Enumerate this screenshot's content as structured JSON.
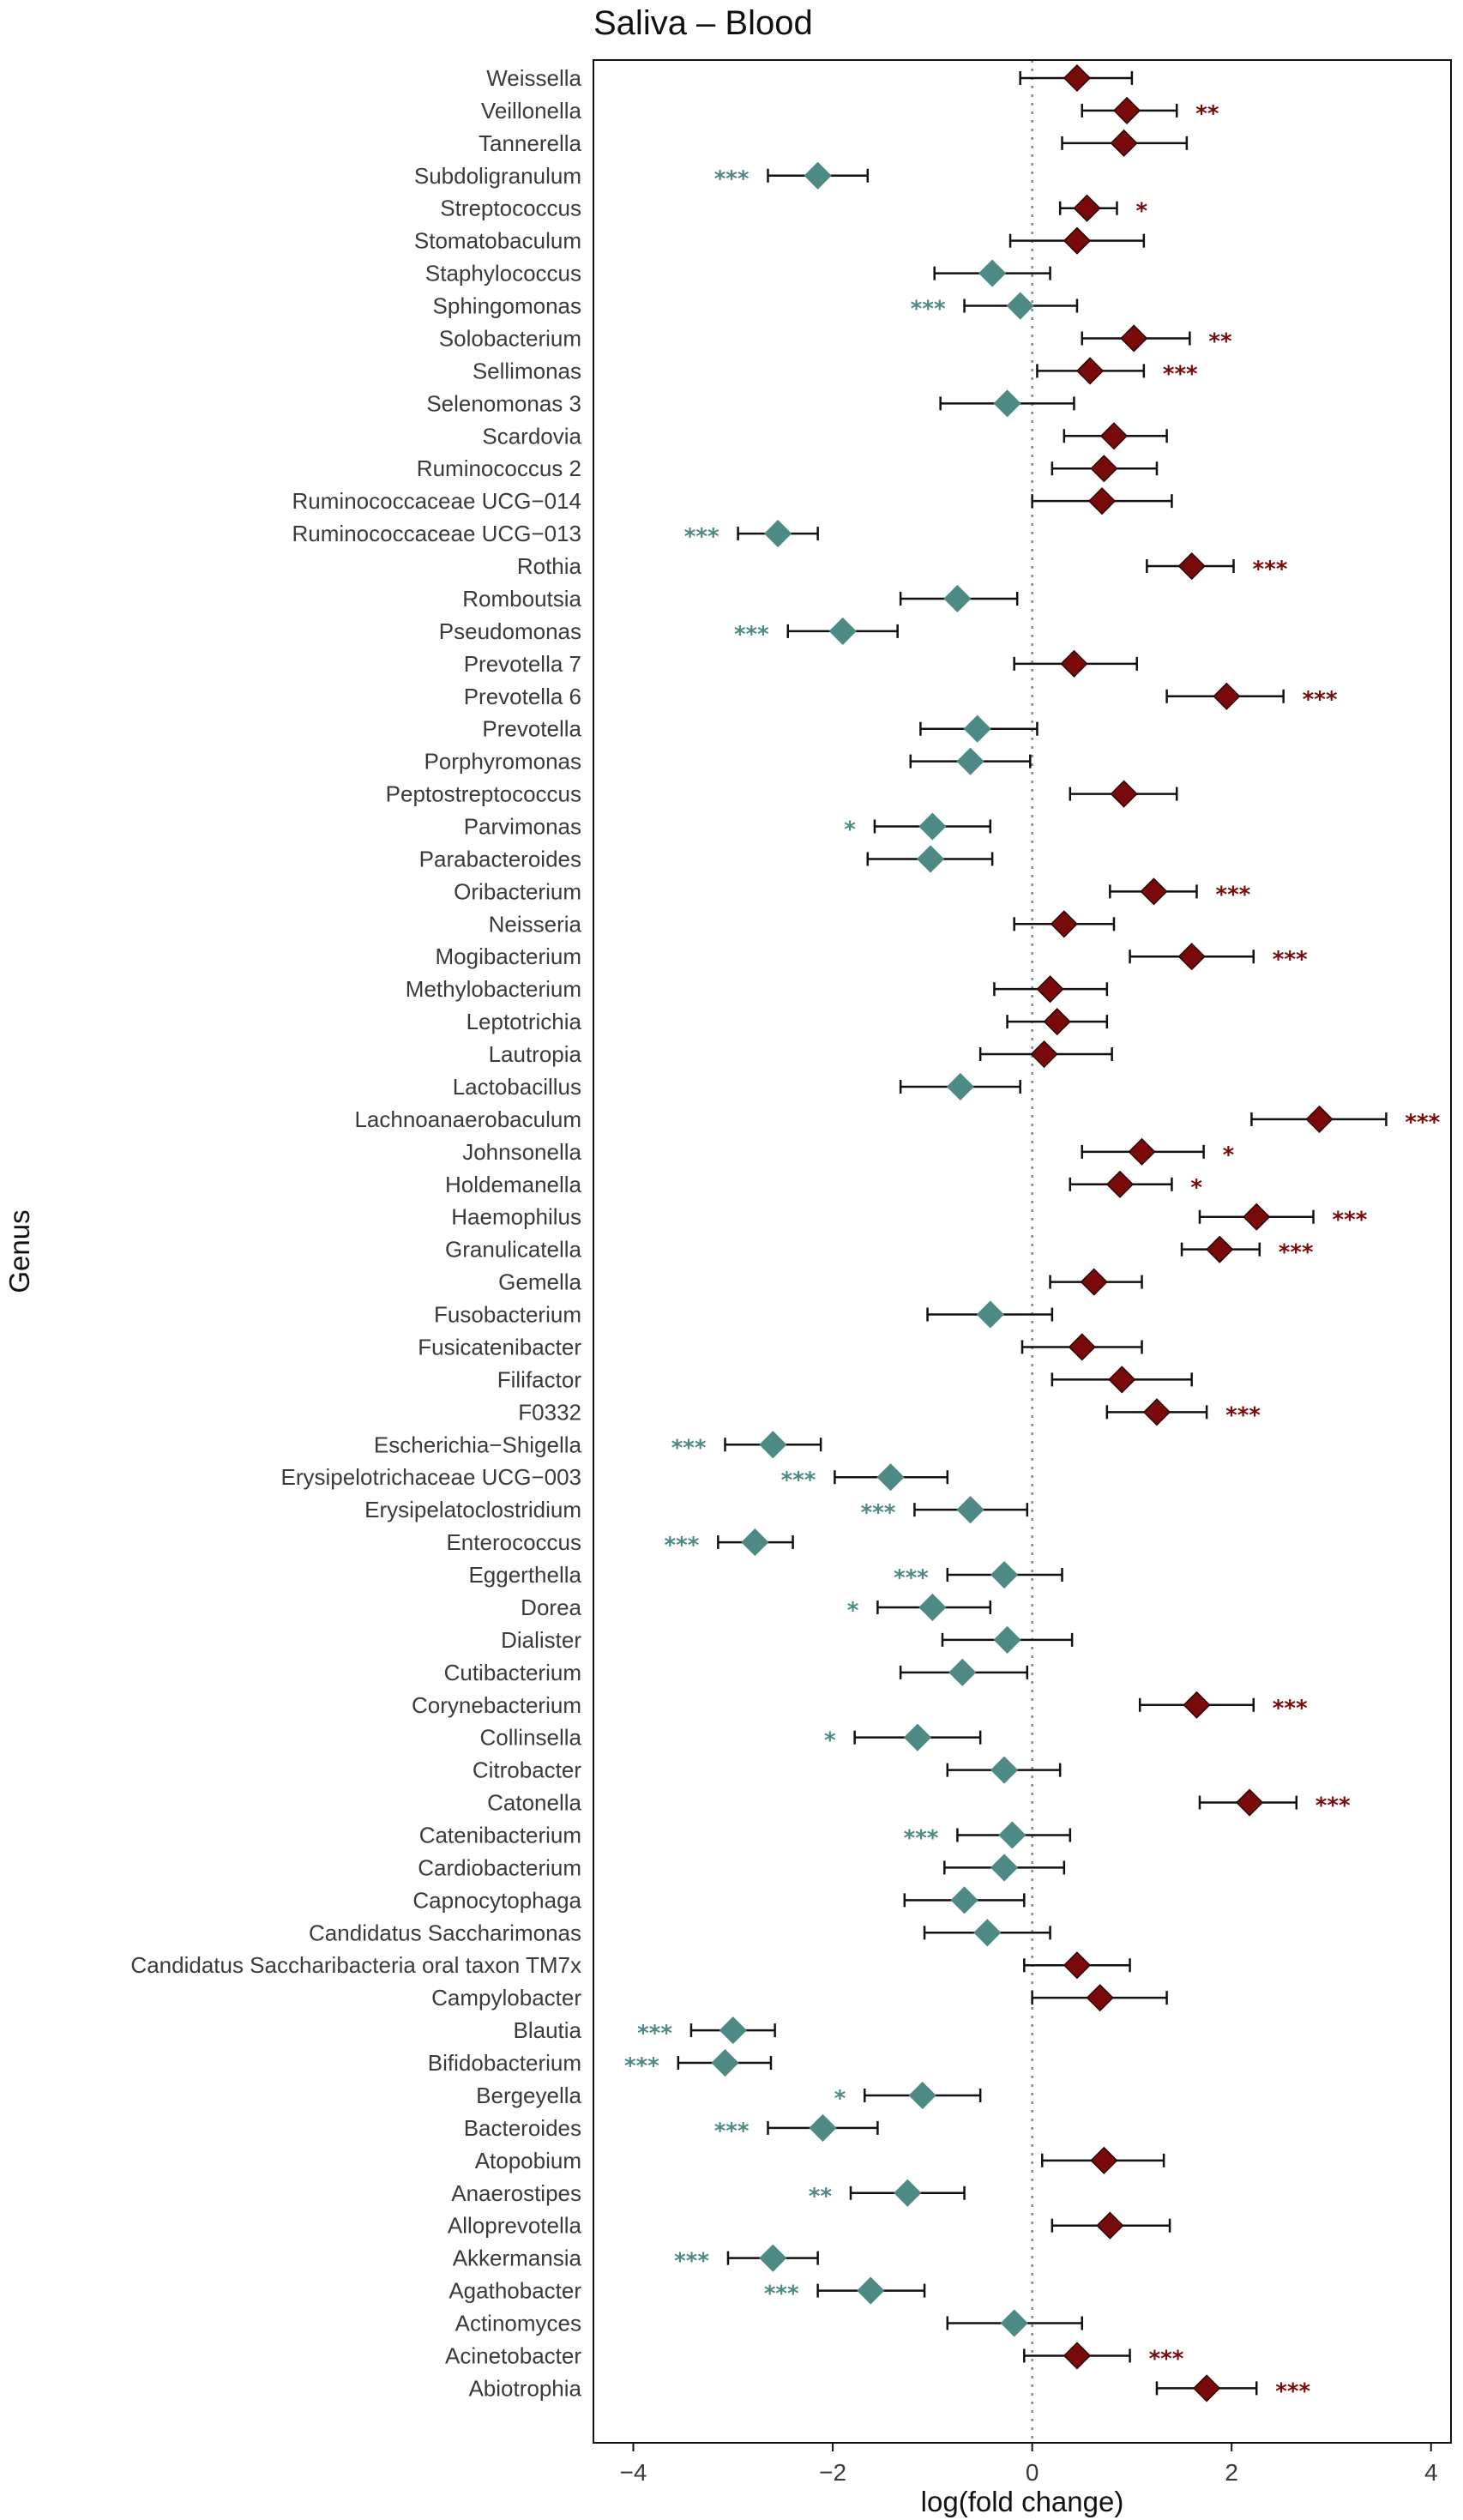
{
  "chart_data": {
    "type": "forest",
    "title": "Saliva – Blood",
    "xlabel": "log(fold change)",
    "ylabel": "Genus",
    "xlim": [
      -4.4,
      4.2
    ],
    "xticks": [
      -4,
      -2,
      0,
      2,
      4
    ],
    "xtick_labels": [
      "−4",
      "−2",
      "0",
      "2",
      "4"
    ],
    "reference_line": 0,
    "colors": {
      "positive": "#7a0a0a",
      "negative": "#4d8a86",
      "errorbar": "#111111",
      "refline": "#888888",
      "frame": "#111111"
    },
    "rows": [
      {
        "genus": "Weissella",
        "value": 0.45,
        "lo": -0.12,
        "hi": 1.0,
        "sig": ""
      },
      {
        "genus": "Veillonella",
        "value": 0.95,
        "lo": 0.5,
        "hi": 1.45,
        "sig": "**"
      },
      {
        "genus": "Tannerella",
        "value": 0.92,
        "lo": 0.3,
        "hi": 1.55,
        "sig": ""
      },
      {
        "genus": "Subdoligranulum",
        "value": -2.15,
        "lo": -2.65,
        "hi": -1.65,
        "sig": "***"
      },
      {
        "genus": "Streptococcus",
        "value": 0.55,
        "lo": 0.28,
        "hi": 0.85,
        "sig": "*"
      },
      {
        "genus": "Stomatobaculum",
        "value": 0.45,
        "lo": -0.22,
        "hi": 1.12,
        "sig": ""
      },
      {
        "genus": "Staphylococcus",
        "value": -0.4,
        "lo": -0.98,
        "hi": 0.18,
        "sig": ""
      },
      {
        "genus": "Sphingomonas",
        "value": -0.12,
        "lo": -0.68,
        "hi": 0.45,
        "sig": "***"
      },
      {
        "genus": "Solobacterium",
        "value": 1.02,
        "lo": 0.5,
        "hi": 1.58,
        "sig": "**"
      },
      {
        "genus": "Sellimonas",
        "value": 0.58,
        "lo": 0.05,
        "hi": 1.12,
        "sig": "***"
      },
      {
        "genus": "Selenomonas 3",
        "value": -0.25,
        "lo": -0.92,
        "hi": 0.42,
        "sig": ""
      },
      {
        "genus": "Scardovia",
        "value": 0.82,
        "lo": 0.32,
        "hi": 1.35,
        "sig": ""
      },
      {
        "genus": "Ruminococcus 2",
        "value": 0.72,
        "lo": 0.2,
        "hi": 1.25,
        "sig": ""
      },
      {
        "genus": "Ruminococcaceae UCG−014",
        "value": 0.7,
        "lo": 0.0,
        "hi": 1.4,
        "sig": ""
      },
      {
        "genus": "Ruminococcaceae UCG−013",
        "value": -2.55,
        "lo": -2.95,
        "hi": -2.15,
        "sig": "***"
      },
      {
        "genus": "Rothia",
        "value": 1.6,
        "lo": 1.15,
        "hi": 2.02,
        "sig": "***"
      },
      {
        "genus": "Romboutsia",
        "value": -0.75,
        "lo": -1.32,
        "hi": -0.15,
        "sig": ""
      },
      {
        "genus": "Pseudomonas",
        "value": -1.9,
        "lo": -2.45,
        "hi": -1.35,
        "sig": "***"
      },
      {
        "genus": "Prevotella 7",
        "value": 0.42,
        "lo": -0.18,
        "hi": 1.05,
        "sig": ""
      },
      {
        "genus": "Prevotella 6",
        "value": 1.95,
        "lo": 1.35,
        "hi": 2.52,
        "sig": "***"
      },
      {
        "genus": "Prevotella",
        "value": -0.55,
        "lo": -1.12,
        "hi": 0.05,
        "sig": ""
      },
      {
        "genus": "Porphyromonas",
        "value": -0.62,
        "lo": -1.22,
        "hi": -0.02,
        "sig": ""
      },
      {
        "genus": "Peptostreptococcus",
        "value": 0.92,
        "lo": 0.38,
        "hi": 1.45,
        "sig": ""
      },
      {
        "genus": "Parvimonas",
        "value": -1.0,
        "lo": -1.58,
        "hi": -0.42,
        "sig": "*"
      },
      {
        "genus": "Parabacteroides",
        "value": -1.02,
        "lo": -1.65,
        "hi": -0.4,
        "sig": ""
      },
      {
        "genus": "Oribacterium",
        "value": 1.22,
        "lo": 0.78,
        "hi": 1.65,
        "sig": "***"
      },
      {
        "genus": "Neisseria",
        "value": 0.32,
        "lo": -0.18,
        "hi": 0.82,
        "sig": ""
      },
      {
        "genus": "Mogibacterium",
        "value": 1.6,
        "lo": 0.98,
        "hi": 2.22,
        "sig": "***"
      },
      {
        "genus": "Methylobacterium",
        "value": 0.18,
        "lo": -0.38,
        "hi": 0.75,
        "sig": ""
      },
      {
        "genus": "Leptotrichia",
        "value": 0.25,
        "lo": -0.25,
        "hi": 0.75,
        "sig": ""
      },
      {
        "genus": "Lautropia",
        "value": 0.12,
        "lo": -0.52,
        "hi": 0.8,
        "sig": ""
      },
      {
        "genus": "Lactobacillus",
        "value": -0.72,
        "lo": -1.32,
        "hi": -0.12,
        "sig": ""
      },
      {
        "genus": "Lachnoanaerobaculum",
        "value": 2.88,
        "lo": 2.2,
        "hi": 3.55,
        "sig": "***"
      },
      {
        "genus": "Johnsonella",
        "value": 1.1,
        "lo": 0.5,
        "hi": 1.72,
        "sig": "*"
      },
      {
        "genus": "Holdemanella",
        "value": 0.88,
        "lo": 0.38,
        "hi": 1.4,
        "sig": "*"
      },
      {
        "genus": "Haemophilus",
        "value": 2.25,
        "lo": 1.68,
        "hi": 2.82,
        "sig": "***"
      },
      {
        "genus": "Granulicatella",
        "value": 1.88,
        "lo": 1.5,
        "hi": 2.28,
        "sig": "***"
      },
      {
        "genus": "Gemella",
        "value": 0.62,
        "lo": 0.18,
        "hi": 1.1,
        "sig": ""
      },
      {
        "genus": "Fusobacterium",
        "value": -0.42,
        "lo": -1.05,
        "hi": 0.2,
        "sig": ""
      },
      {
        "genus": "Fusicatenibacter",
        "value": 0.5,
        "lo": -0.1,
        "hi": 1.1,
        "sig": ""
      },
      {
        "genus": "Filifactor",
        "value": 0.9,
        "lo": 0.2,
        "hi": 1.6,
        "sig": ""
      },
      {
        "genus": "F0332",
        "value": 1.25,
        "lo": 0.75,
        "hi": 1.75,
        "sig": "***"
      },
      {
        "genus": "Escherichia−Shigella",
        "value": -2.6,
        "lo": -3.08,
        "hi": -2.12,
        "sig": "***"
      },
      {
        "genus": "Erysipelotrichaceae UCG−003",
        "value": -1.42,
        "lo": -1.98,
        "hi": -0.85,
        "sig": "***"
      },
      {
        "genus": "Erysipelatoclostridium",
        "value": -0.62,
        "lo": -1.18,
        "hi": -0.05,
        "sig": "***"
      },
      {
        "genus": "Enterococcus",
        "value": -2.78,
        "lo": -3.15,
        "hi": -2.4,
        "sig": "***"
      },
      {
        "genus": "Eggerthella",
        "value": -0.28,
        "lo": -0.85,
        "hi": 0.3,
        "sig": "***"
      },
      {
        "genus": "Dorea",
        "value": -1.0,
        "lo": -1.55,
        "hi": -0.42,
        "sig": "*"
      },
      {
        "genus": "Dialister",
        "value": -0.25,
        "lo": -0.9,
        "hi": 0.4,
        "sig": ""
      },
      {
        "genus": "Cutibacterium",
        "value": -0.7,
        "lo": -1.32,
        "hi": -0.05,
        "sig": ""
      },
      {
        "genus": "Corynebacterium",
        "value": 1.65,
        "lo": 1.08,
        "hi": 2.22,
        "sig": "***"
      },
      {
        "genus": "Collinsella",
        "value": -1.15,
        "lo": -1.78,
        "hi": -0.52,
        "sig": "*"
      },
      {
        "genus": "Citrobacter",
        "value": -0.28,
        "lo": -0.85,
        "hi": 0.28,
        "sig": ""
      },
      {
        "genus": "Catonella",
        "value": 2.18,
        "lo": 1.68,
        "hi": 2.65,
        "sig": "***"
      },
      {
        "genus": "Catenibacterium",
        "value": -0.2,
        "lo": -0.75,
        "hi": 0.38,
        "sig": "***"
      },
      {
        "genus": "Cardiobacterium",
        "value": -0.28,
        "lo": -0.88,
        "hi": 0.32,
        "sig": ""
      },
      {
        "genus": "Capnocytophaga",
        "value": -0.68,
        "lo": -1.28,
        "hi": -0.08,
        "sig": ""
      },
      {
        "genus": "Candidatus Saccharimonas",
        "value": -0.45,
        "lo": -1.08,
        "hi": 0.18,
        "sig": ""
      },
      {
        "genus": "Candidatus Saccharibacteria oral taxon TM7x",
        "value": 0.45,
        "lo": -0.08,
        "hi": 0.98,
        "sig": ""
      },
      {
        "genus": "Campylobacter",
        "value": 0.68,
        "lo": 0.0,
        "hi": 1.35,
        "sig": ""
      },
      {
        "genus": "Blautia",
        "value": -3.0,
        "lo": -3.42,
        "hi": -2.58,
        "sig": "***"
      },
      {
        "genus": "Bifidobacterium",
        "value": -3.08,
        "lo": -3.55,
        "hi": -2.62,
        "sig": "***"
      },
      {
        "genus": "Bergeyella",
        "value": -1.1,
        "lo": -1.68,
        "hi": -0.52,
        "sig": "*"
      },
      {
        "genus": "Bacteroides",
        "value": -2.1,
        "lo": -2.65,
        "hi": -1.55,
        "sig": "***"
      },
      {
        "genus": "Atopobium",
        "value": 0.72,
        "lo": 0.1,
        "hi": 1.32,
        "sig": ""
      },
      {
        "genus": "Anaerostipes",
        "value": -1.25,
        "lo": -1.82,
        "hi": -0.68,
        "sig": "**"
      },
      {
        "genus": "Alloprevotella",
        "value": 0.78,
        "lo": 0.2,
        "hi": 1.38,
        "sig": ""
      },
      {
        "genus": "Akkermansia",
        "value": -2.6,
        "lo": -3.05,
        "hi": -2.15,
        "sig": "***"
      },
      {
        "genus": "Agathobacter",
        "value": -1.62,
        "lo": -2.15,
        "hi": -1.08,
        "sig": "***"
      },
      {
        "genus": "Actinomyces",
        "value": -0.18,
        "lo": -0.85,
        "hi": 0.5,
        "sig": ""
      },
      {
        "genus": "Acinetobacter",
        "value": 0.45,
        "lo": -0.08,
        "hi": 0.98,
        "sig": "***"
      },
      {
        "genus": "Abiotrophia",
        "value": 1.75,
        "lo": 1.25,
        "hi": 2.25,
        "sig": "***"
      }
    ]
  }
}
